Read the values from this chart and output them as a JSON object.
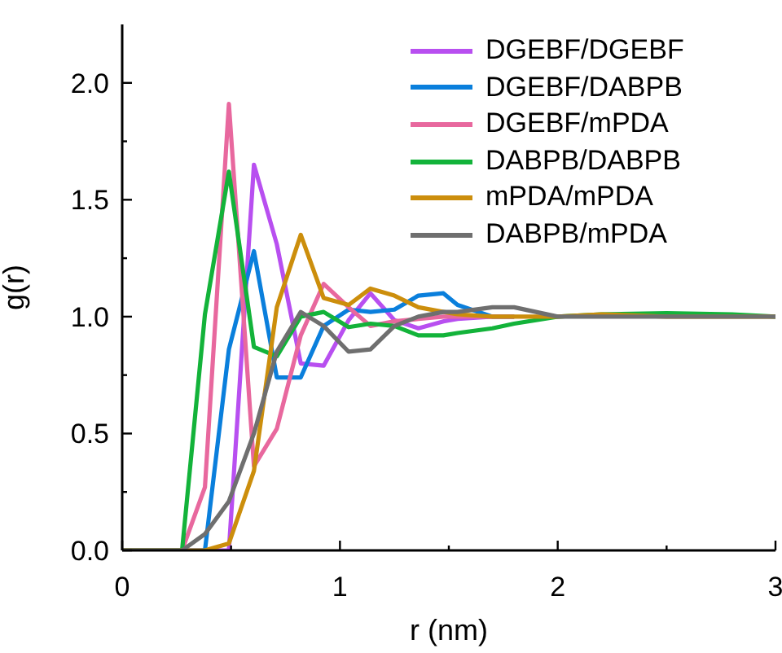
{
  "chart_data": {
    "type": "line",
    "xlabel": "r (nm)",
    "ylabel": "g(r)",
    "x": [
      0,
      0.275,
      0.38,
      0.49,
      0.605,
      0.71,
      0.82,
      0.925,
      1.04,
      1.14,
      1.25,
      1.36,
      1.475,
      1.54,
      1.7,
      1.8,
      2.0,
      2.2,
      2.5,
      2.8,
      3.0
    ],
    "series": [
      {
        "name": "DGEBF/DGEBF",
        "color": "#b84ff0",
        "values": [
          0,
          0,
          0,
          0,
          1.65,
          1.31,
          0.8,
          0.79,
          0.985,
          1.1,
          0.985,
          0.95,
          0.98,
          0.99,
          1.0,
          1.0,
          null,
          null,
          null,
          null,
          null
        ]
      },
      {
        "name": "DGEBF/DABPB",
        "color": "#0a7fdc",
        "values": [
          0,
          0,
          0,
          0.86,
          1.28,
          0.74,
          0.74,
          0.96,
          1.03,
          1.02,
          1.03,
          1.09,
          1.1,
          1.05,
          1.0,
          1.0,
          null,
          null,
          null,
          null,
          null
        ]
      },
      {
        "name": "DGEBF/mPDA",
        "color": "#e8689e",
        "values": [
          0,
          0,
          0.27,
          1.91,
          0.36,
          0.52,
          0.92,
          1.14,
          1.04,
          0.96,
          0.98,
          0.99,
          1.0,
          1.0,
          1.0,
          1.0,
          null,
          null,
          null,
          null,
          null
        ]
      },
      {
        "name": "DABPB/DABPB",
        "color": "#13b33a",
        "values": [
          0,
          0,
          1.01,
          1.62,
          0.87,
          0.83,
          1.0,
          1.02,
          0.955,
          0.97,
          0.96,
          0.92,
          0.92,
          0.93,
          0.95,
          0.97,
          1.0,
          1.01,
          1.015,
          1.01,
          1.0
        ]
      },
      {
        "name": "mPDA/mPDA",
        "color": "#cc8e0c",
        "values": [
          0,
          0,
          0,
          0.03,
          0.34,
          1.04,
          1.35,
          1.08,
          1.05,
          1.12,
          1.09,
          1.04,
          1.02,
          1.01,
          1.0,
          1.0,
          1.0,
          1.01,
          1.0,
          1.0,
          1.0
        ]
      },
      {
        "name": "DABPB/mPDA",
        "color": "#6f6f6f",
        "values": [
          0,
          0,
          0.07,
          0.21,
          0.5,
          0.85,
          1.02,
          0.96,
          0.85,
          0.86,
          0.96,
          1.0,
          1.02,
          1.02,
          1.04,
          1.04,
          1.0,
          1.0,
          1.0,
          1.0,
          1.0
        ]
      }
    ],
    "xlim": [
      0,
      3
    ],
    "xticks": [
      0,
      {
        "value": 0.5,
        "label": null
      },
      1,
      {
        "value": 1.5,
        "label": null
      },
      2,
      {
        "value": 2.5,
        "label": null
      },
      3
    ],
    "ylim": [
      0,
      2.25
    ],
    "yticks": [
      {
        "value": 0,
        "label": "0.0"
      },
      {
        "value": 0.25,
        "label": null
      },
      {
        "value": 0.5,
        "label": "0.5"
      },
      {
        "value": 0.75,
        "label": null
      },
      {
        "value": 1,
        "label": "1.0"
      },
      {
        "value": 1.25,
        "label": null
      },
      {
        "value": 1.5,
        "label": "1.5"
      },
      {
        "value": 1.75,
        "label": null
      },
      {
        "value": 2,
        "label": "2.0"
      }
    ],
    "grid": false,
    "legend": "top right",
    "marker": "none",
    "line_style": "solid"
  }
}
